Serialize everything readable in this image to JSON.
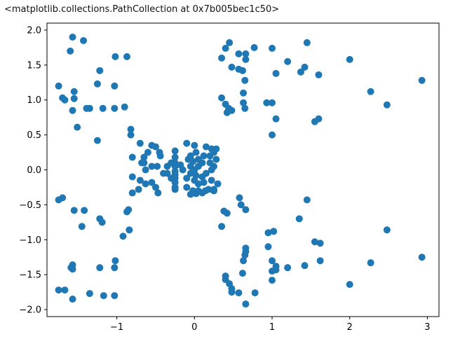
{
  "output": {
    "repr_text": "<matplotlib.collections.PathCollection at 0x7b005bec1c50>"
  },
  "chart_data": {
    "type": "scatter",
    "title": "",
    "xlabel": "",
    "ylabel": "",
    "xlim": [
      -1.9,
      3.15
    ],
    "ylim": [
      -2.1,
      2.1
    ],
    "xticks": [
      -1,
      0,
      1,
      2,
      3
    ],
    "yticks": [
      -2.0,
      -1.5,
      -1.0,
      -0.5,
      0.0,
      0.5,
      1.0,
      1.5,
      2.0
    ],
    "xtick_labels": [
      "−1",
      "0",
      "1",
      "2",
      "3"
    ],
    "ytick_labels": [
      "−2.0",
      "−1.5",
      "−1.0",
      "−0.5",
      "0.0",
      "0.5",
      "1.0",
      "1.5",
      "2.0"
    ],
    "grid": false,
    "marker_color": "#1f77b4",
    "points": [
      [
        -1.57,
        1.9
      ],
      [
        -1.43,
        1.85
      ],
      [
        -1.6,
        1.7
      ],
      [
        -0.87,
        1.62
      ],
      [
        -1.02,
        1.62
      ],
      [
        -1.22,
        1.42
      ],
      [
        -1.75,
        1.2
      ],
      [
        -1.25,
        1.23
      ],
      [
        -1.55,
        1.12
      ],
      [
        -1.03,
        1.2
      ],
      [
        -1.7,
        1.03
      ],
      [
        -1.67,
        1.0
      ],
      [
        -1.55,
        1.02
      ],
      [
        -1.35,
        0.88
      ],
      [
        -1.39,
        0.88
      ],
      [
        -1.18,
        0.88
      ],
      [
        -1.03,
        0.88
      ],
      [
        -0.9,
        0.9
      ],
      [
        -1.57,
        0.85
      ],
      [
        -1.51,
        0.61
      ],
      [
        -1.25,
        0.42
      ],
      [
        0.45,
        1.82
      ],
      [
        0.77,
        1.75
      ],
      [
        0.4,
        1.74
      ],
      [
        0.57,
        1.66
      ],
      [
        1.0,
        1.74
      ],
      [
        1.2,
        1.55
      ],
      [
        1.45,
        1.82
      ],
      [
        1.42,
        1.47
      ],
      [
        1.37,
        1.4
      ],
      [
        1.6,
        1.36
      ],
      [
        0.66,
        1.66
      ],
      [
        0.66,
        1.58
      ],
      [
        0.35,
        1.6
      ],
      [
        0.48,
        1.47
      ],
      [
        0.57,
        1.44
      ],
      [
        0.62,
        1.42
      ],
      [
        1.05,
        1.38
      ],
      [
        0.65,
        1.28
      ],
      [
        2.0,
        1.58
      ],
      [
        2.27,
        1.12
      ],
      [
        2.93,
        1.28
      ],
      [
        2.48,
        0.93
      ],
      [
        0.35,
        1.03
      ],
      [
        0.63,
        1.1
      ],
      [
        0.93,
        0.96
      ],
      [
        1.0,
        0.96
      ],
      [
        0.4,
        0.94
      ],
      [
        0.44,
        0.88
      ],
      [
        0.63,
        0.96
      ],
      [
        0.65,
        0.88
      ],
      [
        0.48,
        0.85
      ],
      [
        0.42,
        0.82
      ],
      [
        1.05,
        0.73
      ],
      [
        1.6,
        0.73
      ],
      [
        1.55,
        0.69
      ],
      [
        1.0,
        0.5
      ],
      [
        -1.75,
        -0.43
      ],
      [
        -1.7,
        -0.4
      ],
      [
        -1.55,
        -0.58
      ],
      [
        -1.42,
        -0.58
      ],
      [
        -0.87,
        -0.6
      ],
      [
        -0.85,
        -0.57
      ],
      [
        -1.22,
        -0.7
      ],
      [
        -1.19,
        -0.75
      ],
      [
        -1.45,
        -0.81
      ],
      [
        -0.84,
        -0.86
      ],
      [
        -0.92,
        -0.95
      ],
      [
        0.38,
        -0.59
      ],
      [
        0.42,
        -0.62
      ],
      [
        0.66,
        -0.57
      ],
      [
        0.6,
        -0.5
      ],
      [
        0.58,
        -0.4
      ],
      [
        0.35,
        -0.81
      ],
      [
        0.95,
        -0.9
      ],
      [
        1.02,
        -0.88
      ],
      [
        1.35,
        -0.7
      ],
      [
        1.45,
        -0.43
      ],
      [
        1.55,
        -1.03
      ],
      [
        1.62,
        -1.05
      ],
      [
        2.48,
        -0.86
      ],
      [
        2.93,
        -1.25
      ],
      [
        2.27,
        -1.33
      ],
      [
        1.62,
        -1.3
      ],
      [
        1.42,
        -1.37
      ],
      [
        1.2,
        -1.4
      ],
      [
        1.0,
        -1.3
      ],
      [
        1.05,
        -1.38
      ],
      [
        1.05,
        -1.43
      ],
      [
        1.0,
        -1.45
      ],
      [
        0.95,
        -1.1
      ],
      [
        0.66,
        -1.12
      ],
      [
        0.66,
        -1.17
      ],
      [
        0.65,
        -1.22
      ],
      [
        0.63,
        -1.3
      ],
      [
        0.62,
        -1.48
      ],
      [
        0.4,
        -1.52
      ],
      [
        0.4,
        -1.57
      ],
      [
        0.45,
        -1.63
      ],
      [
        0.48,
        -1.7
      ],
      [
        0.48,
        -1.75
      ],
      [
        0.57,
        -1.76
      ],
      [
        0.78,
        -1.76
      ],
      [
        1.0,
        -1.58
      ],
      [
        0.66,
        -1.92
      ],
      [
        2.0,
        -1.64
      ],
      [
        -1.02,
        -1.3
      ],
      [
        -1.03,
        -1.4
      ],
      [
        -1.22,
        -1.4
      ],
      [
        -1.57,
        -1.36
      ],
      [
        -1.59,
        -1.4
      ],
      [
        -1.57,
        -1.42
      ],
      [
        -1.75,
        -1.72
      ],
      [
        -1.67,
        -1.72
      ],
      [
        -1.35,
        -1.77
      ],
      [
        -1.17,
        -1.8
      ],
      [
        -1.03,
        -1.8
      ],
      [
        -1.57,
        -1.85
      ],
      [
        -0.82,
        0.58
      ],
      [
        -0.82,
        0.5
      ],
      [
        -0.7,
        0.38
      ],
      [
        -0.6,
        0.25
      ],
      [
        -0.55,
        0.35
      ],
      [
        -0.5,
        0.33
      ],
      [
        -0.8,
        0.18
      ],
      [
        -0.65,
        0.18
      ],
      [
        -0.45,
        0.25
      ],
      [
        -0.44,
        0.2
      ],
      [
        -0.68,
        0.1
      ],
      [
        -0.63,
        0.0
      ],
      [
        -0.55,
        0.05
      ],
      [
        -0.48,
        0.05
      ],
      [
        -0.4,
        -0.05
      ],
      [
        -0.8,
        -0.1
      ],
      [
        -0.7,
        -0.15
      ],
      [
        -0.63,
        -0.2
      ],
      [
        -0.55,
        -0.18
      ],
      [
        -0.5,
        -0.25
      ],
      [
        -0.72,
        -0.28
      ],
      [
        -0.8,
        -0.33
      ],
      [
        -0.47,
        -0.33
      ],
      [
        -0.65,
        0.1
      ],
      [
        -0.25,
        0.27
      ],
      [
        -0.25,
        0.18
      ],
      [
        -0.1,
        0.38
      ],
      [
        -0.05,
        0.2
      ],
      [
        0.0,
        0.35
      ],
      [
        0.02,
        0.25
      ],
      [
        0.15,
        0.33
      ],
      [
        0.22,
        0.3
      ],
      [
        0.28,
        0.3
      ],
      [
        -0.25,
        0.1
      ],
      [
        -0.25,
        0.05
      ],
      [
        -0.25,
        -0.02
      ],
      [
        -0.25,
        -0.07
      ],
      [
        -0.25,
        -0.12
      ],
      [
        -0.25,
        -0.18
      ],
      [
        -0.25,
        -0.25
      ],
      [
        -0.25,
        -0.28
      ],
      [
        -0.08,
        0.15
      ],
      [
        -0.02,
        0.12
      ],
      [
        0.05,
        0.15
      ],
      [
        0.12,
        0.2
      ],
      [
        0.2,
        0.2
      ],
      [
        0.25,
        0.25
      ],
      [
        -0.05,
        0.05
      ],
      [
        0.0,
        0.0
      ],
      [
        0.05,
        0.05
      ],
      [
        0.1,
        0.1
      ],
      [
        0.2,
        0.1
      ],
      [
        0.25,
        0.05
      ],
      [
        -0.05,
        -0.05
      ],
      [
        0.02,
        -0.08
      ],
      [
        0.1,
        -0.1
      ],
      [
        0.15,
        -0.05
      ],
      [
        0.22,
        0.0
      ],
      [
        -0.1,
        -0.12
      ],
      [
        0.0,
        -0.15
      ],
      [
        0.05,
        -0.2
      ],
      [
        0.12,
        -0.18
      ],
      [
        0.22,
        -0.15
      ],
      [
        -0.1,
        -0.25
      ],
      [
        -0.02,
        -0.3
      ],
      [
        0.02,
        -0.34
      ],
      [
        0.05,
        -0.3
      ],
      [
        0.1,
        -0.33
      ],
      [
        0.14,
        -0.3
      ],
      [
        0.18,
        -0.28
      ],
      [
        0.25,
        -0.3
      ],
      [
        -0.05,
        -0.35
      ],
      [
        0.25,
        -0.28
      ],
      [
        -0.15,
        0.0
      ],
      [
        -0.18,
        0.07
      ],
      [
        0.28,
        0.15
      ],
      [
        0.3,
        -0.2
      ],
      [
        -0.35,
        0.05
      ],
      [
        -0.35,
        -0.05
      ],
      [
        -0.3,
        0.1
      ],
      [
        -0.3,
        -0.12
      ]
    ]
  }
}
